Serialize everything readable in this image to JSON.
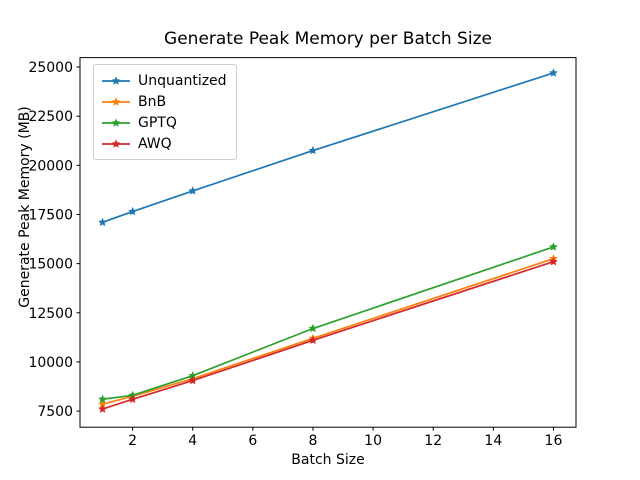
{
  "figure": {
    "background": "#ffffff",
    "axes_color": "#000000",
    "tick_label_color": "#000000"
  },
  "chart_data": {
    "type": "line",
    "title": "Generate Peak Memory per Batch Size",
    "xlabel": "Batch Size",
    "ylabel": "Generate Peak Memory (MB)",
    "x": [
      1,
      2,
      4,
      8,
      16
    ],
    "series": [
      {
        "name": "Unquantized",
        "color": "#1f77b4",
        "values": [
          17100,
          17650,
          18700,
          20750,
          24700
        ]
      },
      {
        "name": "BnB",
        "color": "#ff7f0e",
        "values": [
          7850,
          8250,
          9150,
          11200,
          15250
        ]
      },
      {
        "name": "GPTQ",
        "color": "#2ca02c",
        "values": [
          8100,
          8300,
          9300,
          11700,
          15850
        ]
      },
      {
        "name": "AWQ",
        "color": "#d62728",
        "values": [
          7600,
          8100,
          9050,
          11100,
          15100
        ]
      }
    ],
    "marker": "star",
    "xticks": [
      2,
      4,
      6,
      8,
      10,
      12,
      14,
      16
    ],
    "yticks": [
      7500,
      10000,
      12500,
      15000,
      17500,
      20000,
      22500,
      25000
    ],
    "xlim": [
      0.25,
      16.75
    ],
    "ylim": [
      6680,
      25480
    ],
    "grid": false,
    "legend_position": "upper-left"
  }
}
